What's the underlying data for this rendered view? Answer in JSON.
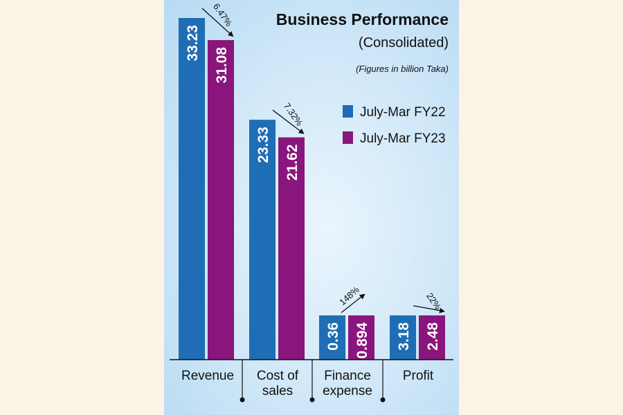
{
  "chart_data": {
    "type": "bar",
    "title": "Business Performance",
    "subtitle": "(Consolidated)",
    "note": "(Figures in billion Taka)",
    "categories": [
      [
        "Revenue"
      ],
      [
        "Cost of",
        "sales"
      ],
      [
        "Finance",
        "expense"
      ],
      [
        "Profit"
      ]
    ],
    "series": [
      {
        "name": "July-Mar FY22",
        "color": "#1f6db5",
        "values": [
          33.23,
          23.33,
          0.36,
          3.18
        ],
        "labels": [
          "33.23",
          "23.33",
          "0.36",
          "3.18"
        ]
      },
      {
        "name": "July-Mar FY23",
        "color": "#8a157c",
        "values": [
          31.08,
          21.62,
          0.894,
          2.48
        ],
        "labels": [
          "31.08",
          "21.62",
          "0.894",
          "2.48"
        ]
      }
    ],
    "changes": [
      {
        "label": "6.47%",
        "direction": "down"
      },
      {
        "label": "7.32%",
        "direction": "down"
      },
      {
        "label": "148%",
        "direction": "up"
      },
      {
        "label": "22%",
        "direction": "down"
      }
    ],
    "legend_position": "top-right",
    "xlabel": "",
    "ylabel": ""
  }
}
